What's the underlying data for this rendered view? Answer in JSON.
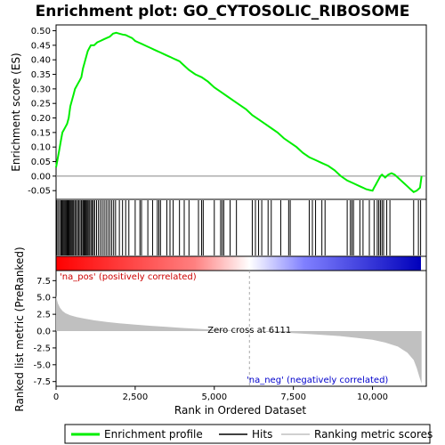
{
  "chart_data": {
    "type": "line",
    "title": "Enrichment plot: GO_CYTOSOLIC_RIBOSOME",
    "xlabel": "Rank in Ordered Dataset",
    "es_panel": {
      "ylabel": "Enrichment score (ES)",
      "ylim": [
        -0.08,
        0.52
      ],
      "yticks": [
        -0.05,
        0.0,
        0.05,
        0.1,
        0.15,
        0.2,
        0.25,
        0.3,
        0.35,
        0.4,
        0.45,
        0.5
      ],
      "ytick_labels": [
        "-0.05",
        "0.00",
        "0.05",
        "0.10",
        "0.15",
        "0.20",
        "0.25",
        "0.30",
        "0.35",
        "0.40",
        "0.45",
        "0.50"
      ],
      "series": [
        {
          "name": "Enrichment profile",
          "color": "#00ee00",
          "x": [
            0,
            50,
            100,
            150,
            200,
            250,
            300,
            350,
            400,
            450,
            500,
            550,
            600,
            650,
            700,
            750,
            800,
            850,
            900,
            950,
            1000,
            1050,
            1100,
            1150,
            1200,
            1300,
            1400,
            1500,
            1600,
            1700,
            1800,
            1900,
            2000,
            2100,
            2200,
            2300,
            2400,
            2500,
            2600,
            2700,
            2800,
            2900,
            3000,
            3100,
            3200,
            3300,
            3400,
            3500,
            3600,
            3700,
            3800,
            3900,
            4000,
            4200,
            4400,
            4600,
            4800,
            5000,
            5200,
            5400,
            5600,
            5800,
            6000,
            6200,
            6400,
            6600,
            6800,
            7000,
            7200,
            7400,
            7600,
            7800,
            8000,
            8200,
            8400,
            8600,
            8800,
            9000,
            9200,
            9400,
            9600,
            9700,
            9800,
            9900,
            10000,
            10050,
            10100,
            10150,
            10200,
            10250,
            10300,
            10400,
            10500,
            10600,
            10700,
            10800,
            10900,
            11000,
            11100,
            11200,
            11300,
            11400,
            11500,
            11550
          ],
          "y": [
            0.03,
            0.06,
            0.09,
            0.12,
            0.15,
            0.16,
            0.17,
            0.18,
            0.2,
            0.24,
            0.26,
            0.28,
            0.3,
            0.31,
            0.32,
            0.33,
            0.34,
            0.37,
            0.39,
            0.41,
            0.43,
            0.44,
            0.45,
            0.45,
            0.45,
            0.46,
            0.465,
            0.47,
            0.475,
            0.48,
            0.49,
            0.493,
            0.49,
            0.487,
            0.485,
            0.48,
            0.475,
            0.465,
            0.46,
            0.455,
            0.45,
            0.445,
            0.44,
            0.435,
            0.43,
            0.425,
            0.42,
            0.415,
            0.41,
            0.405,
            0.4,
            0.395,
            0.385,
            0.365,
            0.35,
            0.34,
            0.325,
            0.305,
            0.29,
            0.275,
            0.26,
            0.245,
            0.23,
            0.21,
            0.195,
            0.18,
            0.165,
            0.15,
            0.13,
            0.115,
            0.1,
            0.08,
            0.065,
            0.055,
            0.045,
            0.035,
            0.02,
            0.0,
            -0.015,
            -0.025,
            -0.035,
            -0.04,
            -0.045,
            -0.048,
            -0.05,
            -0.04,
            -0.03,
            -0.02,
            -0.01,
            0.0,
            0.005,
            -0.005,
            0.005,
            0.01,
            0.005,
            -0.005,
            -0.015,
            -0.025,
            -0.035,
            -0.045,
            -0.055,
            -0.05,
            -0.04,
            0.0
          ]
        }
      ]
    },
    "hits_panel": {
      "label": "Hits",
      "positions": [
        20,
        60,
        110,
        150,
        180,
        200,
        230,
        260,
        290,
        320,
        350,
        380,
        410,
        440,
        470,
        500,
        530,
        560,
        600,
        640,
        680,
        720,
        760,
        800,
        840,
        870,
        900,
        930,
        960,
        990,
        1020,
        1060,
        1100,
        1140,
        1180,
        1220,
        1280,
        1340,
        1400,
        1460,
        1520,
        1580,
        1640,
        1700,
        1760,
        1820,
        1880,
        2000,
        2100,
        2200,
        2300,
        2500,
        2650,
        2700,
        2900,
        3050,
        3200,
        3250,
        3300,
        3500,
        3600,
        3700,
        3900,
        4050,
        4200,
        4500,
        4600,
        4650,
        5000,
        5200,
        5250,
        5300,
        5500,
        5700,
        6200,
        6300,
        6400,
        6500,
        6700,
        6800,
        7100,
        7350,
        7400,
        8000,
        8100,
        8200,
        8400,
        8500,
        9200,
        9300,
        9350,
        9400,
        9600,
        9700,
        9900,
        10050,
        10150,
        10200,
        10250,
        10300,
        10350,
        10450,
        10550,
        11300,
        11450,
        11520
      ]
    },
    "heat_bar": {
      "colors": [
        "#ff0000",
        "#ff8080",
        "#ffffff",
        "#8080ff",
        "#0000bb"
      ],
      "stops": [
        0,
        0.38,
        0.53,
        0.68,
        1.0
      ]
    },
    "metric_panel": {
      "ylabel": "Ranked list metric (PreRanked)",
      "ylim": [
        -8.2,
        9.0
      ],
      "yticks": [
        -7.5,
        -5.0,
        -2.5,
        0.0,
        2.5,
        5.0,
        7.5
      ],
      "ytick_labels": [
        "-7.5",
        "-5.0",
        "-2.5",
        "0.0",
        "2.5",
        "5.0",
        "7.5"
      ],
      "series": [
        {
          "name": "Ranking metric scores",
          "color": "#c0c0c0",
          "x": [
            0,
            20,
            60,
            120,
            200,
            300,
            450,
            650,
            900,
            1200,
            1600,
            2000,
            2500,
            3000,
            3500,
            4000,
            4500,
            5000,
            5500,
            6111,
            6600,
            7200,
            7800,
            8400,
            9000,
            9500,
            10000,
            10400,
            10800,
            11100,
            11300,
            11400,
            11480,
            11550
          ],
          "y": [
            5.3,
            4.8,
            4.1,
            3.5,
            3.0,
            2.65,
            2.35,
            2.1,
            1.85,
            1.6,
            1.35,
            1.15,
            0.95,
            0.78,
            0.62,
            0.47,
            0.33,
            0.2,
            0.1,
            0.0,
            -0.1,
            -0.22,
            -0.38,
            -0.55,
            -0.75,
            -1.0,
            -1.3,
            -1.7,
            -2.3,
            -3.2,
            -4.3,
            -5.5,
            -6.8,
            -7.8
          ]
        }
      ],
      "annotations": {
        "pos_label": "'na_pos' (positively correlated)",
        "neg_label": "'na_neg' (negatively correlated)",
        "zero_cross": "Zero cross at 6111",
        "zero_cross_value": 6111
      }
    },
    "x_axis": {
      "xlim": [
        0,
        11700
      ],
      "xticks": [
        0,
        2500,
        5000,
        7500,
        10000
      ],
      "xtick_labels": [
        "0",
        "2,500",
        "5,000",
        "7,500",
        "10,000"
      ]
    },
    "legend": {
      "placement": "bottom",
      "entries": [
        {
          "label": "Enrichment profile",
          "color": "#00ee00"
        },
        {
          "label": "Hits",
          "color": "#000000"
        },
        {
          "label": "Ranking metric scores",
          "color": "#c0c0c0"
        }
      ]
    },
    "colors": {
      "pos_label": "#cc0000",
      "neg_label": "#0000cc",
      "zero_cross_line": "#aaaaaa"
    }
  }
}
